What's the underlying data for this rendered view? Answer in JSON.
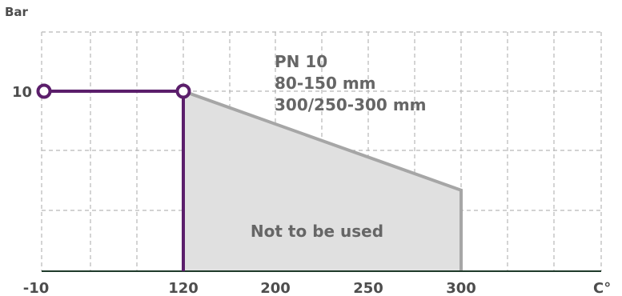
{
  "chart_data": {
    "type": "line",
    "y_axis_label": "Bar",
    "x_axis_unit_label": "C°",
    "y_ticks": [
      {
        "value": 10,
        "label": "10"
      }
    ],
    "x_ticks": [
      {
        "value": -10,
        "label": "-10"
      },
      {
        "value": 120,
        "label": "120"
      },
      {
        "value": 200,
        "label": "200"
      },
      {
        "value": 250,
        "label": "250"
      },
      {
        "value": 300,
        "label": "300"
      }
    ],
    "xlim": [
      -10,
      350
    ],
    "ylim": [
      0,
      12.5
    ],
    "grid": true,
    "series": [
      {
        "color": "#5b1e6b",
        "points": [
          {
            "x": -10,
            "y": 10,
            "marker": true
          },
          {
            "x": 120,
            "y": 10,
            "marker": true
          },
          {
            "x": 120,
            "y": 0,
            "marker": false
          }
        ]
      }
    ],
    "region": {
      "label": "Not to be used",
      "fill": "#e0e0e0",
      "edge": "#a6a6a6",
      "points": [
        {
          "x": 120,
          "y": 10
        },
        {
          "x": 300,
          "y": 4.5
        },
        {
          "x": 300,
          "y": 0
        },
        {
          "x": 120,
          "y": 0
        }
      ]
    },
    "annotations": [
      "PN 10",
      "80-150 mm",
      "300/250-300 mm"
    ]
  }
}
